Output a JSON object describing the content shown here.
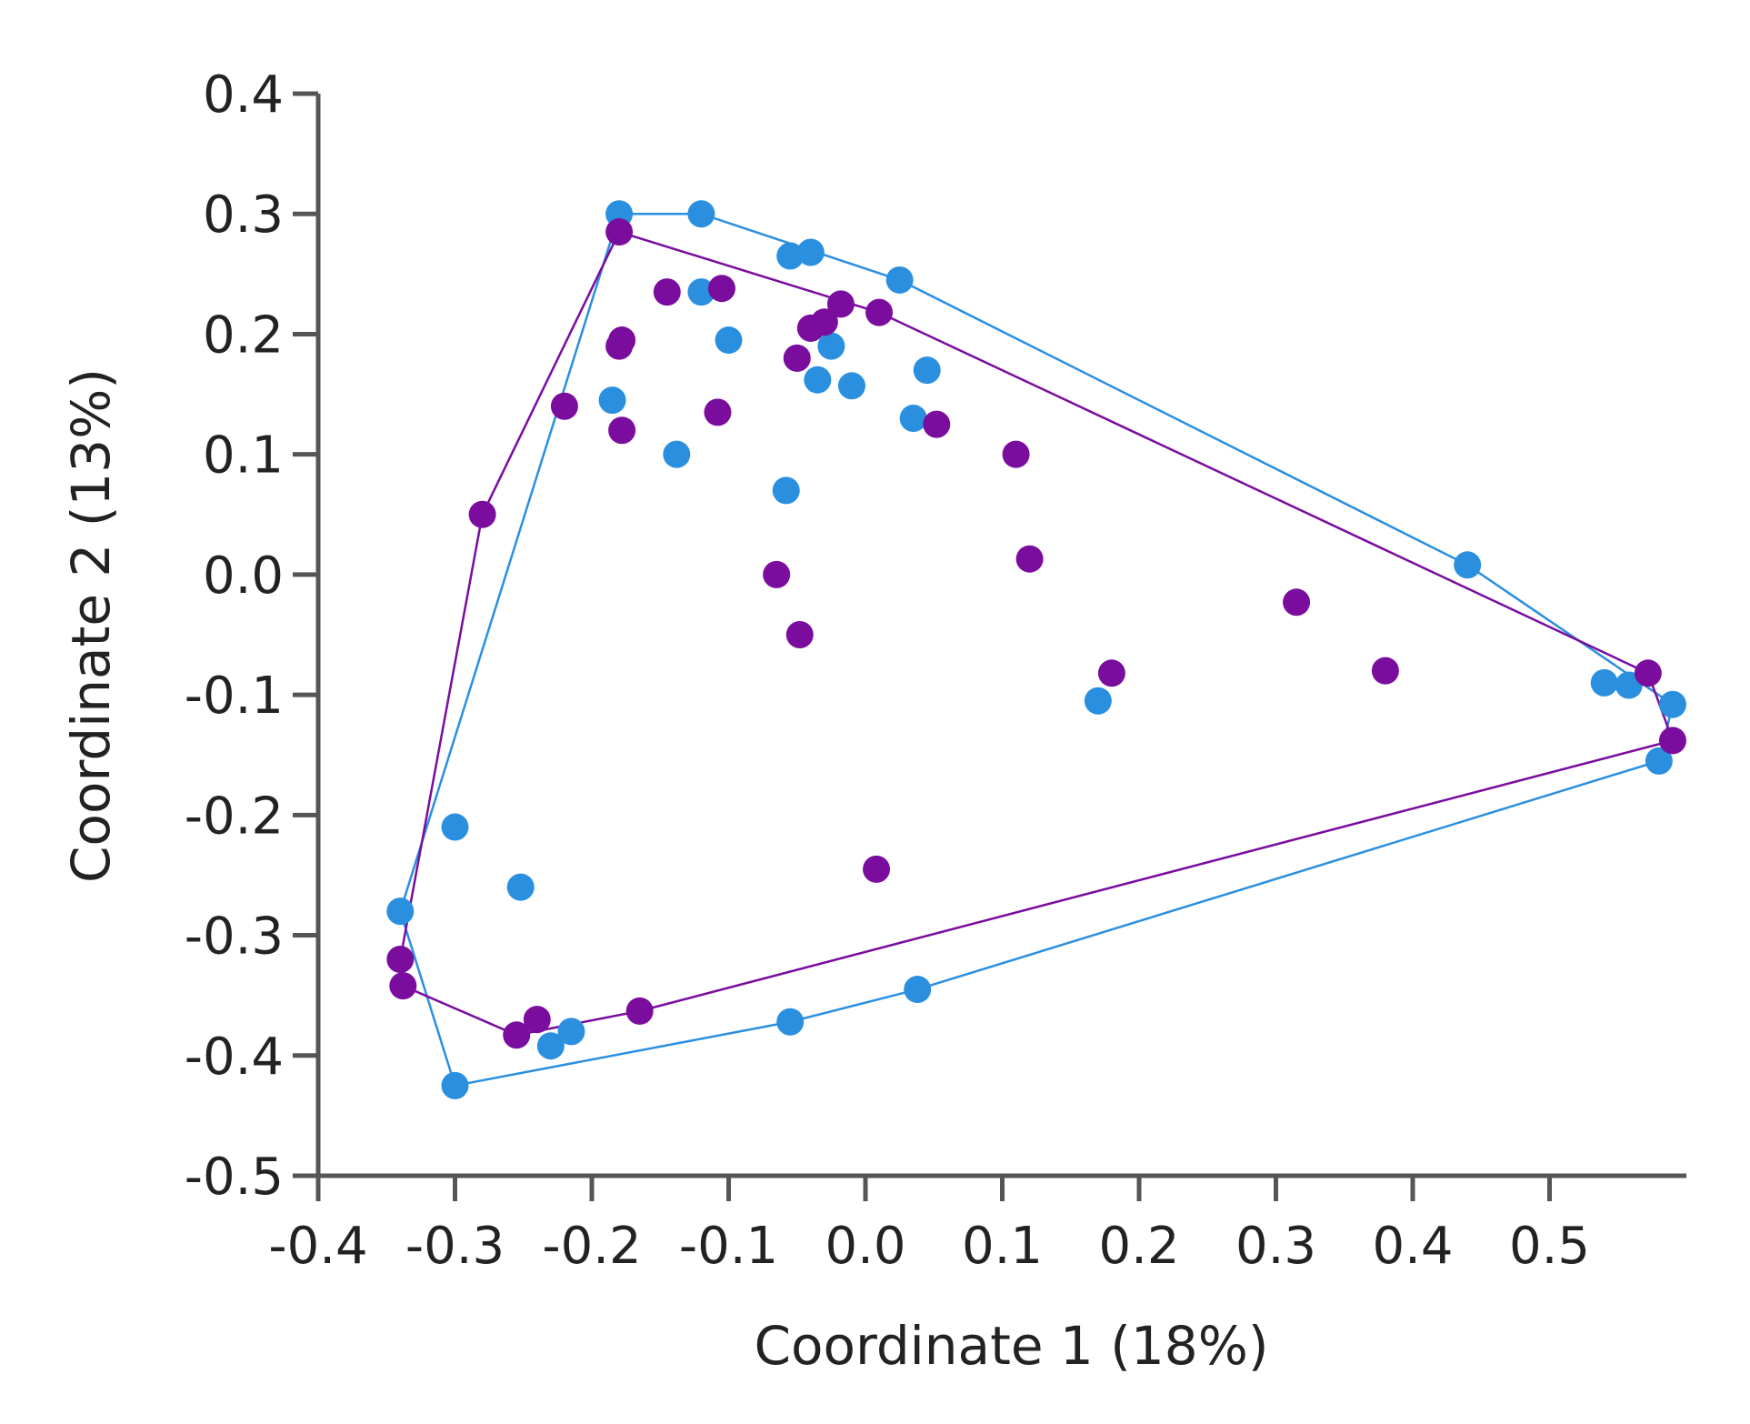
{
  "chart_data": {
    "type": "scatter",
    "xlabel": "Coordinate 1 (18%)",
    "ylabel": "Coordinate 2 (13%)",
    "xlim": [
      -0.4,
      0.6
    ],
    "ylim": [
      -0.5,
      0.4
    ],
    "xticks": [
      -0.4,
      -0.3,
      -0.2,
      -0.1,
      0.0,
      0.1,
      0.2,
      0.3,
      0.4,
      0.5
    ],
    "xtick_labels": [
      "-0.4",
      "-0.3",
      "-0.2",
      "-0.1",
      "0.0",
      "0.1",
      "0.2",
      "0.3",
      "0.4",
      "0.5"
    ],
    "yticks": [
      -0.5,
      -0.4,
      -0.3,
      -0.2,
      -0.1,
      0.0,
      0.1,
      0.2,
      0.3,
      0.4
    ],
    "ytick_labels": [
      "-0.5",
      "-0.4",
      "-0.3",
      "-0.2",
      "-0.1",
      "0.0",
      "0.1",
      "0.2",
      "0.3",
      "0.4"
    ],
    "grid": false,
    "series": [
      {
        "color": "#2b8fe0",
        "hull": true,
        "points": [
          [
            -0.18,
            0.3
          ],
          [
            -0.12,
            0.3
          ],
          [
            -0.055,
            0.265
          ],
          [
            -0.04,
            0.268
          ],
          [
            0.025,
            0.245
          ],
          [
            -0.12,
            0.235
          ],
          [
            -0.1,
            0.195
          ],
          [
            -0.025,
            0.19
          ],
          [
            -0.035,
            0.162
          ],
          [
            -0.01,
            0.157
          ],
          [
            0.045,
            0.17
          ],
          [
            -0.185,
            0.145
          ],
          [
            0.035,
            0.13
          ],
          [
            -0.138,
            0.1
          ],
          [
            -0.058,
            0.07
          ],
          [
            0.44,
            0.008
          ],
          [
            0.17,
            -0.105
          ],
          [
            0.54,
            -0.09
          ],
          [
            0.558,
            -0.092
          ],
          [
            0.59,
            -0.108
          ],
          [
            0.58,
            -0.155
          ],
          [
            -0.3,
            -0.21
          ],
          [
            -0.252,
            -0.26
          ],
          [
            -0.34,
            -0.28
          ],
          [
            -0.215,
            -0.38
          ],
          [
            -0.23,
            -0.392
          ],
          [
            -0.055,
            -0.372
          ],
          [
            0.038,
            -0.345
          ],
          [
            -0.3,
            -0.425
          ]
        ]
      },
      {
        "color": "#7a0d9e",
        "hull": true,
        "points": [
          [
            -0.18,
            0.285
          ],
          [
            -0.145,
            0.235
          ],
          [
            -0.105,
            0.238
          ],
          [
            -0.018,
            0.225
          ],
          [
            0.01,
            0.218
          ],
          [
            -0.03,
            0.21
          ],
          [
            -0.04,
            0.205
          ],
          [
            -0.178,
            0.195
          ],
          [
            -0.18,
            0.19
          ],
          [
            -0.05,
            0.18
          ],
          [
            -0.22,
            0.14
          ],
          [
            -0.108,
            0.135
          ],
          [
            0.052,
            0.125
          ],
          [
            -0.178,
            0.12
          ],
          [
            0.11,
            0.1
          ],
          [
            -0.28,
            0.05
          ],
          [
            0.12,
            0.013
          ],
          [
            -0.065,
            0.0
          ],
          [
            0.315,
            -0.023
          ],
          [
            -0.048,
            -0.05
          ],
          [
            0.18,
            -0.082
          ],
          [
            0.38,
            -0.08
          ],
          [
            0.572,
            -0.082
          ],
          [
            0.59,
            -0.138
          ],
          [
            0.008,
            -0.245
          ],
          [
            -0.34,
            -0.32
          ],
          [
            -0.338,
            -0.342
          ],
          [
            -0.24,
            -0.37
          ],
          [
            -0.255,
            -0.383
          ],
          [
            -0.165,
            -0.363
          ]
        ]
      }
    ]
  }
}
